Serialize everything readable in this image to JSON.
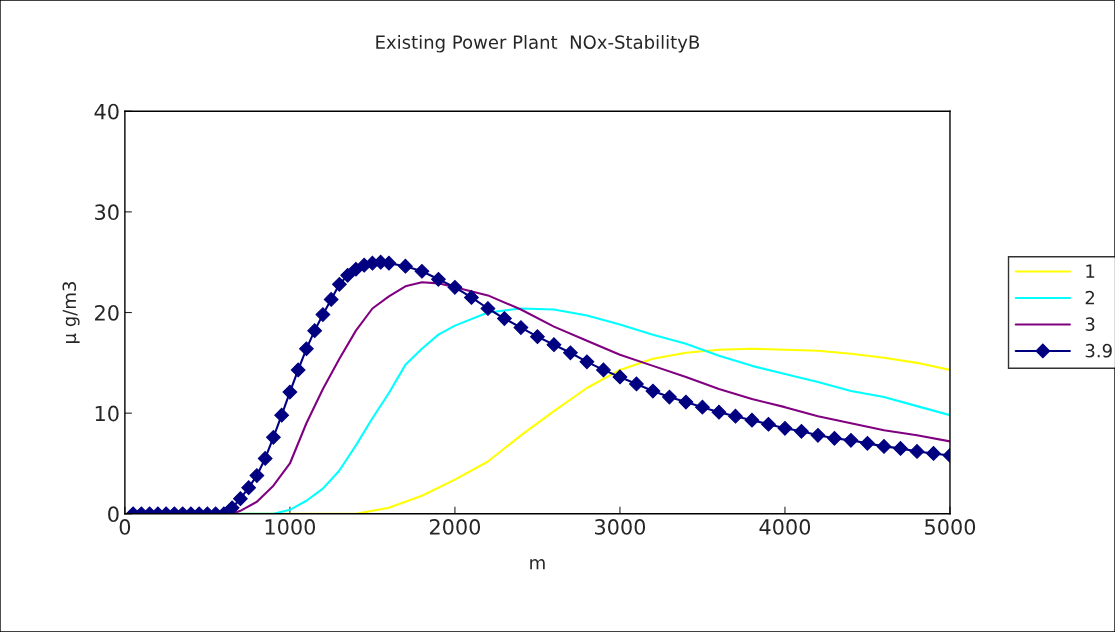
{
  "chart_data": {
    "type": "line",
    "title": "Existing Power Plant  NOx-StabilityB",
    "xlabel": "m",
    "ylabel": "μ g/m3",
    "xlim": [
      0,
      5000
    ],
    "xticks": [
      0,
      1000,
      2000,
      3000,
      4000,
      5000
    ],
    "ylim": [
      0,
      40
    ],
    "yticks": [
      0,
      10,
      20,
      30,
      40
    ],
    "grid": false,
    "legend": "right",
    "series": [
      {
        "name": "1",
        "color": "#ffff00",
        "marker": "none",
        "x": [
          50,
          1400,
          1600,
          1800,
          2000,
          2200,
          2400,
          2600,
          2800,
          3000,
          3200,
          3400,
          3600,
          3800,
          4000,
          4200,
          4400,
          4600,
          4800,
          5000
        ],
        "values": [
          0,
          0,
          0.6,
          1.8,
          3.4,
          5.2,
          7.8,
          10.2,
          12.5,
          14.3,
          15.4,
          16.0,
          16.3,
          16.4,
          16.3,
          16.2,
          15.9,
          15.5,
          15.0,
          14.3
        ]
      },
      {
        "name": "2",
        "color": "#00ffff",
        "marker": "none",
        "x": [
          50,
          900,
          1000,
          1100,
          1200,
          1300,
          1400,
          1500,
          1600,
          1700,
          1800,
          1900,
          2000,
          2200,
          2400,
          2600,
          2800,
          3000,
          3200,
          3400,
          3600,
          3800,
          4000,
          4200,
          4400,
          4600,
          4800,
          5000
        ],
        "values": [
          0,
          0,
          0.4,
          1.3,
          2.5,
          4.3,
          6.8,
          9.5,
          12.0,
          14.8,
          16.4,
          17.8,
          18.7,
          20.0,
          20.4,
          20.3,
          19.7,
          18.8,
          17.8,
          16.9,
          15.7,
          14.7,
          13.9,
          13.1,
          12.2,
          11.6,
          10.7,
          9.8
        ]
      },
      {
        "name": "3",
        "color": "#800080",
        "marker": "none",
        "x": [
          50,
          650,
          700,
          800,
          900,
          1000,
          1100,
          1200,
          1300,
          1400,
          1500,
          1600,
          1700,
          1800,
          1900,
          2000,
          2200,
          2400,
          2600,
          2800,
          3000,
          3200,
          3400,
          3600,
          3800,
          4000,
          4200,
          4400,
          4600,
          4800,
          5000
        ],
        "values": [
          0,
          0,
          0.3,
          1.2,
          2.8,
          5.0,
          9.0,
          12.4,
          15.4,
          18.2,
          20.4,
          21.6,
          22.6,
          23.0,
          22.9,
          22.5,
          21.7,
          20.3,
          18.6,
          17.2,
          15.8,
          14.7,
          13.6,
          12.4,
          11.4,
          10.6,
          9.7,
          9.0,
          8.3,
          7.8,
          7.2
        ]
      },
      {
        "name": "3.9",
        "color": "#000080",
        "marker": "diamond",
        "x": [
          50,
          100,
          150,
          200,
          250,
          300,
          350,
          400,
          450,
          500,
          550,
          600,
          650,
          700,
          750,
          800,
          850,
          900,
          950,
          1000,
          1050,
          1100,
          1150,
          1200,
          1250,
          1300,
          1350,
          1400,
          1450,
          1500,
          1550,
          1600,
          1700,
          1800,
          1900,
          2000,
          2100,
          2200,
          2300,
          2400,
          2500,
          2600,
          2700,
          2800,
          2900,
          3000,
          3100,
          3200,
          3300,
          3400,
          3500,
          3600,
          3700,
          3800,
          3900,
          4000,
          4100,
          4200,
          4300,
          4400,
          4500,
          4600,
          4700,
          4800,
          4900,
          5000
        ],
        "values": [
          0,
          0,
          0,
          0,
          0,
          0,
          0,
          0,
          0,
          0,
          0,
          0,
          0.6,
          1.5,
          2.6,
          3.8,
          5.5,
          7.6,
          9.8,
          12.1,
          14.3,
          16.4,
          18.2,
          19.8,
          21.3,
          22.8,
          23.7,
          24.3,
          24.7,
          24.9,
          25.0,
          24.9,
          24.6,
          24.1,
          23.3,
          22.5,
          21.5,
          20.4,
          19.4,
          18.5,
          17.6,
          16.8,
          16.0,
          15.1,
          14.3,
          13.6,
          12.9,
          12.2,
          11.6,
          11.1,
          10.6,
          10.1,
          9.7,
          9.3,
          8.9,
          8.5,
          8.2,
          7.8,
          7.5,
          7.3,
          7.0,
          6.7,
          6.5,
          6.2,
          6.0,
          5.8
        ]
      }
    ]
  }
}
